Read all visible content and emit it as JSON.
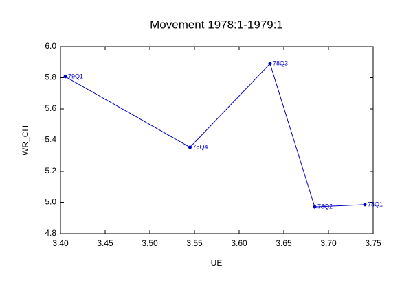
{
  "chart_data": {
    "type": "line",
    "title": "Movement 1978:1-1979:1",
    "x_label": "UE",
    "y_label": "WR_CH",
    "x": [
      3.7408,
      3.6846,
      3.6346,
      3.545,
      3.4054
    ],
    "values": [
      4.985,
      4.971,
      5.89,
      5.354,
      5.807
    ],
    "point_labels": [
      "78Q1",
      "78Q2",
      "78Q3",
      "78Q4",
      "79Q1"
    ],
    "color": "#0000c0",
    "xlim": [
      3.4,
      3.75
    ],
    "xticks": [
      {
        "value": 3.4,
        "label": "3.40"
      },
      {
        "value": 3.45,
        "label": "3.45"
      },
      {
        "value": 3.5,
        "label": "3.50"
      },
      {
        "value": 3.55,
        "label": "3.55"
      },
      {
        "value": 3.6,
        "label": "3.60"
      },
      {
        "value": 3.65,
        "label": "3.65"
      },
      {
        "value": 3.7,
        "label": "3.70"
      },
      {
        "value": 3.75,
        "label": "3.75"
      }
    ],
    "ylim": [
      4.8,
      6.0
    ],
    "yticks": [
      4.8,
      {
        "value": 5.0,
        "label": "5.0"
      },
      5.2,
      5.4,
      5.6,
      5.8,
      {
        "value": 6.0,
        "label": "6.0"
      }
    ]
  }
}
